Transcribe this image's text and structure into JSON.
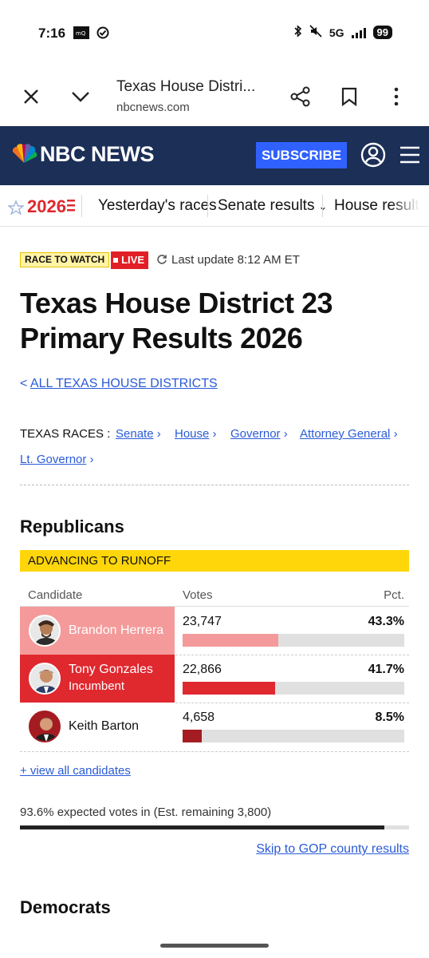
{
  "status_bar": {
    "time": "7:16",
    "network": "5G",
    "battery": "99"
  },
  "browser": {
    "page_title": "Texas House Distri...",
    "host": "nbcnews.com"
  },
  "header": {
    "logo_text": "NBC NEWS",
    "subscribe_label": "SUBSCRIBE"
  },
  "election_nav": {
    "logo_year": "2026",
    "items": [
      "Yesterday's races",
      "Senate results",
      "House results"
    ]
  },
  "race": {
    "watch_badge": "RACE TO WATCH",
    "live_badge": "LIVE",
    "last_update": "Last update 8:12 AM ET",
    "title_line1": "Texas House District 23",
    "title_line2": "Primary Results 2026",
    "back_link": "ALL TEXAS HOUSE DISTRICTS",
    "races_label": "TEXAS RACES :",
    "race_links": [
      "Senate",
      "House",
      "Governor",
      "Attorney General",
      "Lt. Governor"
    ]
  },
  "republicans": {
    "party_title": "Republicans",
    "runoff_label": "ADVANCING TO RUNOFF",
    "col_candidate": "Candidate",
    "col_votes": "Votes",
    "col_pct": "Pct.",
    "candidates": [
      {
        "name": "Brandon Herrera",
        "sub": "",
        "votes": "23,747",
        "pct": "43.3%",
        "share": 43.3,
        "color": "#f59a9a"
      },
      {
        "name": "Tony Gonzales",
        "sub": "Incumbent",
        "votes": "22,866",
        "pct": "41.7%",
        "share": 41.7,
        "color": "#e0282f"
      },
      {
        "name": "Keith Barton",
        "sub": "",
        "votes": "4,658",
        "pct": "8.5%",
        "share": 8.5,
        "color": "#a41c22"
      }
    ],
    "view_all": "+ view all candidates",
    "expected": "93.6% expected votes in (Est. remaining 3,800)",
    "expected_share": 93.6,
    "skip_link": "Skip to GOP county results"
  },
  "democrats": {
    "party_title": "Democrats"
  },
  "colors": {
    "header_bg": "#1b2f57",
    "subscribe_bg": "#3061ff",
    "live_red": "#e21f26",
    "runoff_yellow": "#ffd60a",
    "link_blue": "#2a5bd7"
  }
}
